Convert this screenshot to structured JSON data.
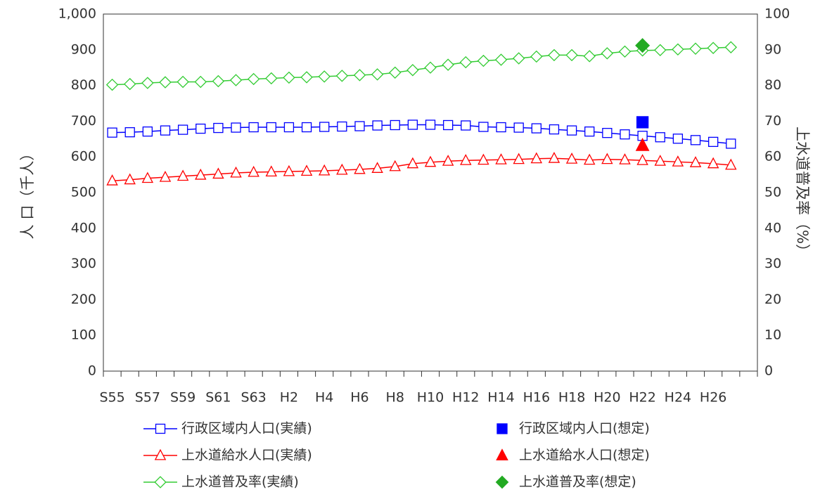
{
  "chart_data": {
    "type": "line",
    "y_label": "人 口（千人）",
    "y2_label": "上水道普及率（%）",
    "categories": [
      "S55",
      null,
      "S57",
      null,
      "S59",
      null,
      "S61",
      null,
      "S63",
      null,
      "H2",
      null,
      "H4",
      null,
      "H6",
      null,
      "H8",
      null,
      "H10",
      null,
      "H12",
      null,
      "H14",
      null,
      "H16",
      null,
      "H18",
      null,
      "H20",
      null,
      "H22",
      null,
      "H24",
      null,
      "H26",
      null,
      null
    ],
    "ylim": [
      0,
      1000
    ],
    "yticks": [
      0,
      100,
      200,
      300,
      400,
      500,
      600,
      700,
      800,
      900,
      {
        "value": 1000,
        "label": "1,000"
      }
    ],
    "y2lim": [
      0,
      100
    ],
    "y2ticks": [
      0,
      10,
      20,
      30,
      40,
      50,
      60,
      70,
      80,
      90,
      100
    ],
    "grid": false,
    "series": [
      {
        "name": "行政区域内人口(実績)",
        "color": "#0000ff",
        "marker": "square",
        "filled": false,
        "line": true,
        "values": [
          668,
          669,
          671,
          674,
          676,
          679,
          681,
          682,
          683,
          683,
          683,
          683,
          684,
          685,
          686,
          688,
          689,
          690,
          690,
          689,
          688,
          684,
          683,
          682,
          680,
          677,
          674,
          671,
          667,
          663,
          659,
          655,
          651,
          647,
          642,
          637,
          null
        ]
      },
      {
        "name": "行政区域内人口(想定)",
        "color": "#0000ff",
        "marker": "square",
        "filled": true,
        "line": false,
        "values": [
          null,
          null,
          null,
          null,
          null,
          null,
          null,
          null,
          null,
          null,
          null,
          null,
          null,
          null,
          null,
          null,
          null,
          null,
          null,
          null,
          null,
          null,
          null,
          null,
          null,
          null,
          null,
          null,
          null,
          null,
          697,
          null,
          null,
          null,
          null,
          null,
          null
        ]
      },
      {
        "name": "上水道給水人口(実績)",
        "color": "#ff0000",
        "marker": "triangle",
        "filled": false,
        "line": true,
        "values": [
          533,
          536,
          540,
          543,
          546,
          549,
          552,
          555,
          557,
          558,
          559,
          560,
          561,
          563,
          565,
          568,
          573,
          581,
          585,
          588,
          590,
          591,
          592,
          593,
          595,
          596,
          594,
          591,
          593,
          592,
          590,
          588,
          586,
          584,
          581,
          577,
          null
        ]
      },
      {
        "name": "上水道給水人口(想定)",
        "color": "#ff0000",
        "marker": "triangle",
        "filled": true,
        "line": false,
        "values": [
          null,
          null,
          null,
          null,
          null,
          null,
          null,
          null,
          null,
          null,
          null,
          null,
          null,
          null,
          null,
          null,
          null,
          null,
          null,
          null,
          null,
          null,
          null,
          null,
          null,
          null,
          null,
          null,
          null,
          null,
          632,
          null,
          null,
          null,
          null,
          null,
          null
        ]
      },
      {
        "name": "上水道普及率(実績)",
        "color": "#33cc33",
        "marker": "diamond",
        "filled": false,
        "line": true,
        "axis": "y2",
        "values": [
          80.2,
          80.4,
          80.7,
          80.9,
          81.0,
          81.0,
          81.2,
          81.5,
          81.8,
          82.0,
          82.2,
          82.3,
          82.5,
          82.7,
          82.9,
          83.1,
          83.6,
          84.3,
          85.0,
          85.8,
          86.5,
          86.9,
          87.2,
          87.6,
          88.1,
          88.5,
          88.5,
          88.2,
          89.0,
          89.5,
          89.8,
          89.9,
          90.1,
          90.3,
          90.5,
          90.7,
          null
        ]
      },
      {
        "name": "上水道普及率(想定)",
        "color": "#22aa22",
        "marker": "diamond",
        "filled": true,
        "line": false,
        "axis": "y2",
        "values": [
          null,
          null,
          null,
          null,
          null,
          null,
          null,
          null,
          null,
          null,
          null,
          null,
          null,
          null,
          null,
          null,
          null,
          null,
          null,
          null,
          null,
          null,
          null,
          null,
          null,
          null,
          null,
          null,
          null,
          null,
          91.2,
          null,
          null,
          null,
          null,
          null,
          null
        ]
      }
    ]
  }
}
